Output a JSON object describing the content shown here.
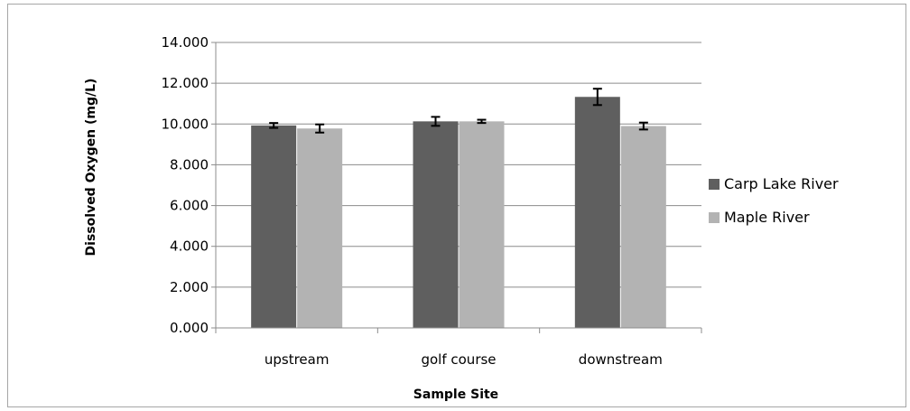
{
  "chart_data": {
    "type": "bar",
    "categories": [
      "upstream",
      "golf course",
      "downstream"
    ],
    "series": [
      {
        "name": "Carp Lake River",
        "color": "#5f5f5f",
        "values": [
          9.93,
          10.13,
          11.33
        ],
        "error": [
          0.12,
          0.22,
          0.4
        ]
      },
      {
        "name": "Maple River",
        "color": "#b3b3b3",
        "values": [
          9.78,
          10.13,
          9.9
        ],
        "error": [
          0.2,
          0.08,
          0.17
        ]
      }
    ],
    "ylim": [
      0,
      14
    ],
    "yticks": [
      "0.000",
      "2.000",
      "4.000",
      "6.000",
      "8.000",
      "10.000",
      "12.000",
      "14.000"
    ],
    "ytick_values": [
      0,
      2,
      4,
      6,
      8,
      10,
      12,
      14
    ],
    "xlabel": "Sample Site",
    "ylabel": "Dissolved Oxygen (mg/L)",
    "grid": true,
    "legend": "right"
  }
}
